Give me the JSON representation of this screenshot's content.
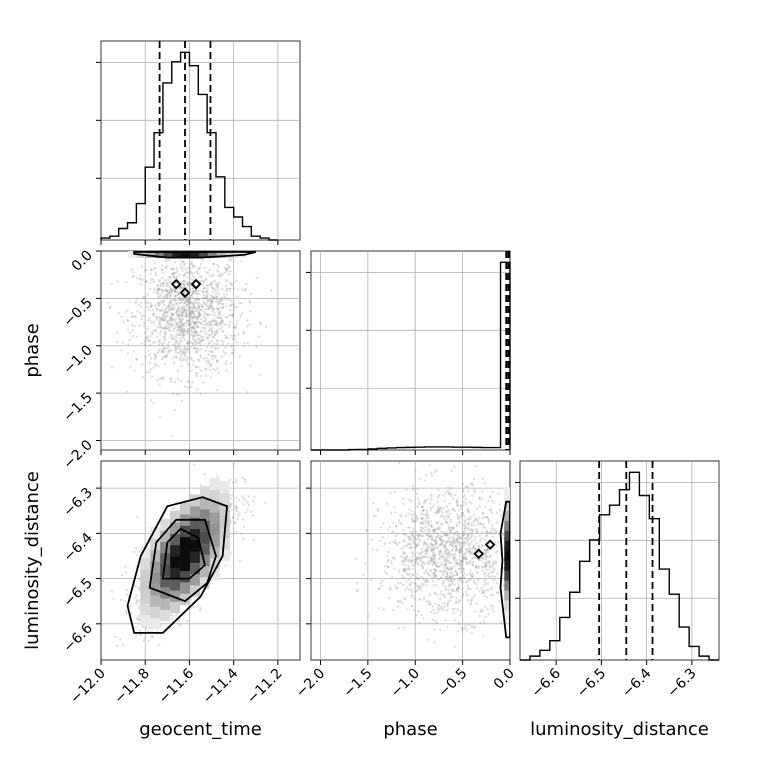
{
  "chart_data": {
    "type": "corner",
    "parameters": [
      {
        "name": "geocent_time",
        "range": [
          -12.0,
          -11.1
        ],
        "ticks": [
          -12.0,
          -11.8,
          -11.6,
          -11.4,
          -11.2
        ],
        "tick_labels": [
          "−12.0",
          "−11.8",
          "−11.6",
          "−11.4",
          "−11.2"
        ],
        "quantiles": [
          -11.735,
          -11.62,
          -11.505
        ]
      },
      {
        "name": "phase",
        "range": [
          -2.1,
          0.0
        ],
        "ticks": [
          -2.0,
          -1.5,
          -1.0,
          -0.5,
          0.0
        ],
        "tick_labels": [
          "−2.0",
          "−1.5",
          "−1.0",
          "−0.5",
          "0.0"
        ],
        "quantiles": [
          -0.04,
          -0.02,
          -0.005
        ]
      },
      {
        "name": "luminosity_distance",
        "range": [
          -6.68,
          -6.24
        ],
        "ticks": [
          -6.6,
          -6.5,
          -6.4,
          -6.3
        ],
        "tick_labels": [
          "−6.6",
          "−6.5",
          "−6.4",
          "−6.3"
        ],
        "quantiles": [
          -6.505,
          -6.445,
          -6.387
        ]
      }
    ],
    "histograms": {
      "geocent_time": {
        "bin_edges": [
          -12.0,
          -11.96,
          -11.92,
          -11.88,
          -11.84,
          -11.8,
          -11.76,
          -11.72,
          -11.68,
          -11.64,
          -11.6,
          -11.56,
          -11.52,
          -11.48,
          -11.44,
          -11.4,
          -11.36,
          -11.32,
          -11.28,
          -11.24,
          -11.2
        ],
        "counts": [
          0.01,
          0.02,
          0.06,
          0.09,
          0.19,
          0.38,
          0.56,
          0.82,
          0.93,
          0.98,
          0.91,
          0.76,
          0.56,
          0.33,
          0.17,
          0.12,
          0.07,
          0.02,
          0.01,
          0.0
        ]
      },
      "phase": {
        "bin_edges": [
          -2.1,
          -2.0,
          -1.9,
          -1.8,
          -1.7,
          -1.6,
          -1.5,
          -1.4,
          -1.3,
          -1.2,
          -1.1,
          -1.0,
          -0.9,
          -0.8,
          -0.7,
          -0.6,
          -0.5,
          -0.4,
          -0.3,
          -0.2,
          -0.1,
          0.0
        ],
        "counts": [
          0.0,
          0.0,
          0.0,
          0.0,
          0.002,
          0.003,
          0.005,
          0.008,
          0.01,
          0.012,
          0.013,
          0.014,
          0.015,
          0.015,
          0.015,
          0.014,
          0.014,
          0.013,
          0.012,
          0.012,
          0.93
        ]
      },
      "luminosity_distance": {
        "bin_edges": [
          -6.68,
          -6.658,
          -6.636,
          -6.614,
          -6.592,
          -6.57,
          -6.548,
          -6.526,
          -6.504,
          -6.482,
          -6.46,
          -6.438,
          -6.416,
          -6.394,
          -6.372,
          -6.35,
          -6.328,
          -6.306,
          -6.284,
          -6.262,
          -6.24
        ],
        "counts": [
          0.0,
          0.02,
          0.05,
          0.1,
          0.22,
          0.35,
          0.51,
          0.62,
          0.75,
          0.8,
          0.88,
          0.97,
          0.85,
          0.73,
          0.47,
          0.34,
          0.17,
          0.07,
          0.02,
          0.0
        ]
      }
    },
    "pairs": [
      {
        "x": "geocent_time",
        "y": "phase",
        "centroid": [
          -11.61,
          -0.67
        ],
        "spread": [
          0.12,
          0.32
        ],
        "mass_line": -0.02,
        "contours": [
          [
            [
              -11.85,
              -0.03
            ],
            [
              -11.7,
              -0.07
            ],
            [
              -11.55,
              -0.07
            ],
            [
              -11.35,
              -0.04
            ],
            [
              -11.3,
              -0.01
            ],
            [
              -11.85,
              -0.01
            ]
          ]
        ],
        "markers": [
          [
            -11.66,
            -0.35
          ],
          [
            -11.57,
            -0.35
          ],
          [
            -11.62,
            -0.44
          ]
        ]
      },
      {
        "x": "geocent_time",
        "y": "luminosity_distance",
        "centroid": [
          -11.62,
          -6.445
        ],
        "spread": [
          0.11,
          0.07
        ],
        "correlation": 0.7,
        "contours": [
          [
            [
              -11.72,
              -6.5
            ],
            [
              -11.7,
              -6.42
            ],
            [
              -11.64,
              -6.39
            ],
            [
              -11.56,
              -6.41
            ],
            [
              -11.53,
              -6.47
            ],
            [
              -11.6,
              -6.5
            ]
          ],
          [
            [
              -11.78,
              -6.52
            ],
            [
              -11.75,
              -6.42
            ],
            [
              -11.66,
              -6.37
            ],
            [
              -11.53,
              -6.37
            ],
            [
              -11.48,
              -6.45
            ],
            [
              -11.52,
              -6.51
            ],
            [
              -11.62,
              -6.55
            ]
          ],
          [
            [
              -11.88,
              -6.56
            ],
            [
              -11.82,
              -6.45
            ],
            [
              -11.7,
              -6.34
            ],
            [
              -11.54,
              -6.32
            ],
            [
              -11.43,
              -6.34
            ],
            [
              -11.45,
              -6.45
            ],
            [
              -11.55,
              -6.54
            ],
            [
              -11.72,
              -6.62
            ],
            [
              -11.85,
              -6.62
            ]
          ]
        ]
      },
      {
        "x": "phase",
        "y": "luminosity_distance",
        "centroid": [
          -0.65,
          -6.445
        ],
        "spread": [
          0.35,
          0.07
        ],
        "mass_line": -0.02,
        "contours": [
          [
            [
              -0.04,
              -6.33
            ],
            [
              -0.1,
              -6.4
            ],
            [
              -0.08,
              -6.46
            ],
            [
              -0.1,
              -6.52
            ],
            [
              -0.04,
              -6.63
            ],
            [
              0.0,
              -6.63
            ],
            [
              0.0,
              -6.33
            ]
          ]
        ],
        "markers": [
          [
            -0.33,
            -6.445
          ],
          [
            -0.21,
            -6.425
          ]
        ]
      }
    ]
  }
}
